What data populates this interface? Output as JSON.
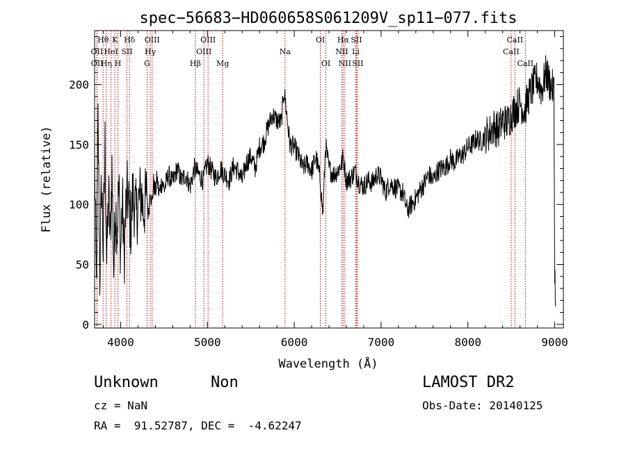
{
  "chart_data": {
    "type": "line",
    "title": "spec−56683−HD060658S061209V_sp11−077.fits",
    "xlabel": "Wavelength (Å)",
    "ylabel": "Flux (relative)",
    "xlim": [
      3700,
      9100
    ],
    "ylim": [
      -3,
      245
    ],
    "xticks": [
      4000,
      5000,
      6000,
      7000,
      8000,
      9000
    ],
    "yticks": [
      0,
      50,
      100,
      150,
      200
    ],
    "grid": false,
    "line_color": "#000000",
    "marker_color": "#aa0000",
    "series": [
      {
        "x": [
          3700,
          3720,
          3740,
          3760,
          3780,
          3800,
          3820,
          3840,
          3860,
          3880,
          3900,
          3920,
          3940,
          3960,
          3980,
          4000,
          4020,
          4040,
          4060,
          4080,
          4100,
          4120,
          4140,
          4160,
          4180,
          4200,
          4220,
          4240,
          4260,
          4280,
          4300,
          4320,
          4340,
          4360,
          4380,
          4400,
          4420,
          4440,
          4460,
          4480,
          4500,
          4550,
          4600,
          4650,
          4700,
          4750,
          4800,
          4850,
          4900,
          4950,
          5000,
          5050,
          5100,
          5150,
          5200,
          5250,
          5300,
          5350,
          5400,
          5450,
          5500,
          5550,
          5600,
          5650,
          5700,
          5750,
          5800,
          5850,
          5880,
          5900,
          5920,
          5950,
          6000,
          6050,
          6100,
          6150,
          6200,
          6250,
          6300,
          6330,
          6360,
          6400,
          6450,
          6500,
          6550,
          6563,
          6600,
          6650,
          6700,
          6750,
          6800,
          6850,
          6900,
          6950,
          7000,
          7050,
          7100,
          7150,
          7200,
          7250,
          7300,
          7350,
          7400,
          7450,
          7500,
          7550,
          7600,
          7650,
          7700,
          7750,
          7800,
          7850,
          7900,
          7950,
          8000,
          8050,
          8100,
          8150,
          8200,
          8250,
          8300,
          8350,
          8400,
          8450,
          8500,
          8550,
          8600,
          8650,
          8700,
          8750,
          8800,
          8850,
          8900,
          8950,
          8990,
          9000,
          9010
        ],
        "y": [
          140,
          30,
          170,
          40,
          120,
          60,
          150,
          50,
          110,
          70,
          130,
          45,
          100,
          80,
          115,
          60,
          105,
          55,
          95,
          110,
          95,
          80,
          110,
          100,
          90,
          100,
          105,
          110,
          95,
          100,
          110,
          90,
          115,
          100,
          118,
          110,
          122,
          108,
          115,
          120,
          112,
          125,
          118,
          130,
          120,
          125,
          115,
          130,
          125,
          120,
          135,
          128,
          122,
          130,
          125,
          120,
          132,
          128,
          120,
          135,
          140,
          130,
          148,
          152,
          165,
          175,
          170,
          168,
          195,
          185,
          170,
          150,
          148,
          140,
          130,
          135,
          128,
          140,
          120,
          90,
          150,
          130,
          125,
          128,
          135,
          140,
          120,
          122,
          128,
          118,
          115,
          120,
          118,
          125,
          122,
          110,
          118,
          115,
          112,
          110,
          95,
          100,
          105,
          112,
          118,
          125,
          120,
          128,
          130,
          132,
          138,
          135,
          140,
          142,
          148,
          150,
          155,
          152,
          158,
          160,
          165,
          162,
          170,
          168,
          175,
          180,
          185,
          178,
          190,
          198,
          205,
          195,
          210,
          200,
          195,
          50,
          15
        ]
      }
    ],
    "lines": [
      {
        "label": "Hθ",
        "x": 3798,
        "row": 0
      },
      {
        "label": "OII",
        "x": 3727,
        "row": 1
      },
      {
        "label": "OII",
        "x": 3729,
        "row": 2
      },
      {
        "label": "K",
        "x": 3934,
        "row": 0
      },
      {
        "label": "HeI",
        "x": 3889,
        "row": 1
      },
      {
        "label": "Hη",
        "x": 3835,
        "row": 2
      },
      {
        "label": "H",
        "x": 3969,
        "row": 2
      },
      {
        "label": "SII",
        "x": 4072,
        "row": 1
      },
      {
        "label": "Hδ",
        "x": 4102,
        "row": 0
      },
      {
        "label": "OIII",
        "x": 4363,
        "row": 0
      },
      {
        "label": "Hγ",
        "x": 4341,
        "row": 1
      },
      {
        "label": "G",
        "x": 4305,
        "row": 2
      },
      {
        "label": "Hβ",
        "x": 4861,
        "row": 2
      },
      {
        "label": "OIII",
        "x": 5007,
        "row": 0
      },
      {
        "label": "OIII",
        "x": 4959,
        "row": 1
      },
      {
        "label": "Mg",
        "x": 5175,
        "row": 2
      },
      {
        "label": "Na",
        "x": 5894,
        "row": 1
      },
      {
        "label": "OI",
        "x": 6300,
        "row": 0
      },
      {
        "label": "OI",
        "x": 6364,
        "row": 2
      },
      {
        "label": "Hα",
        "x": 6563,
        "row": 0
      },
      {
        "label": "NII",
        "x": 6548,
        "row": 1
      },
      {
        "label": "NII",
        "x": 6583,
        "row": 2
      },
      {
        "label": "SII",
        "x": 6716,
        "row": 0
      },
      {
        "label": "Li",
        "x": 6708,
        "row": 1
      },
      {
        "label": "SII",
        "x": 6731,
        "row": 2
      },
      {
        "label": "CaII",
        "x": 8542,
        "row": 0
      },
      {
        "label": "CaII",
        "x": 8498,
        "row": 1
      },
      {
        "label": "CaII",
        "x": 8662,
        "row": 2
      }
    ]
  },
  "info": {
    "object_class": "Unknown",
    "object_subclass": "Non",
    "cz": "cz = NaN",
    "coords": "RA =  91.52787, DEC =  -4.62247",
    "survey": "LAMOST DR2",
    "obs_date": "Obs-Date: 20140125"
  }
}
